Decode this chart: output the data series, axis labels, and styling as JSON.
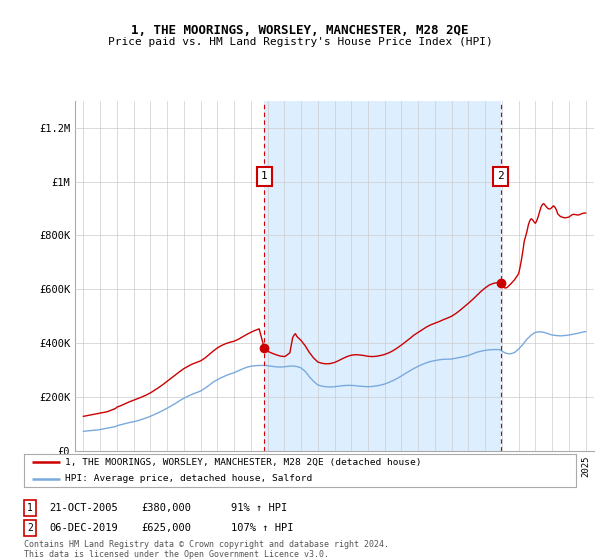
{
  "title": "1, THE MOORINGS, WORSLEY, MANCHESTER, M28 2QE",
  "subtitle": "Price paid vs. HM Land Registry's House Price Index (HPI)",
  "ylabel_ticks": [
    0,
    200000,
    400000,
    600000,
    800000,
    1000000,
    1200000
  ],
  "ylabel_labels": [
    "£0",
    "£200K",
    "£400K",
    "£600K",
    "£800K",
    "£1M",
    "£1.2M"
  ],
  "ylim": [
    0,
    1300000
  ],
  "xlim_years": [
    1994.5,
    2025.5
  ],
  "x_tick_years": [
    1995,
    1996,
    1997,
    1998,
    1999,
    2000,
    2001,
    2002,
    2003,
    2004,
    2005,
    2006,
    2007,
    2008,
    2009,
    2010,
    2011,
    2012,
    2013,
    2014,
    2015,
    2016,
    2017,
    2018,
    2019,
    2020,
    2021,
    2022,
    2023,
    2024,
    2025
  ],
  "sale1_year": 2005.81,
  "sale1_price": 380000,
  "sale1_label": "1",
  "sale1_date": "21-OCT-2005",
  "sale1_amount": "£380,000",
  "sale1_hpi": "91% ↑ HPI",
  "sale2_year": 2019.92,
  "sale2_price": 625000,
  "sale2_label": "2",
  "sale2_date": "06-DEC-2019",
  "sale2_amount": "£625,000",
  "sale2_hpi": "107% ↑ HPI",
  "line1_color": "#cc0000",
  "line2_color": "#7aaadd",
  "dashed_color": "#cc0000",
  "grid_color": "#cccccc",
  "shade_color": "#ddeeff",
  "background_color": "#ffffff",
  "legend_line1": "1, THE MOORINGS, WORSLEY, MANCHESTER, M28 2QE (detached house)",
  "legend_line2": "HPI: Average price, detached house, Salford",
  "footer": "Contains HM Land Registry data © Crown copyright and database right 2024.\nThis data is licensed under the Open Government Licence v3.0.",
  "hpi_x": [
    1995.0,
    1995.083,
    1995.167,
    1995.25,
    1995.333,
    1995.417,
    1995.5,
    1995.583,
    1995.667,
    1995.75,
    1995.833,
    1995.917,
    1996.0,
    1996.083,
    1996.167,
    1996.25,
    1996.333,
    1996.417,
    1996.5,
    1996.583,
    1996.667,
    1996.75,
    1996.833,
    1996.917,
    1997.0,
    1997.25,
    1997.5,
    1997.75,
    1998.0,
    1998.25,
    1998.5,
    1998.75,
    1999.0,
    1999.25,
    1999.5,
    1999.75,
    2000.0,
    2000.25,
    2000.5,
    2000.75,
    2001.0,
    2001.25,
    2001.5,
    2001.75,
    2002.0,
    2002.25,
    2002.5,
    2002.75,
    2003.0,
    2003.25,
    2003.5,
    2003.75,
    2004.0,
    2004.25,
    2004.5,
    2004.75,
    2005.0,
    2005.25,
    2005.5,
    2005.75,
    2005.917,
    2006.0,
    2006.25,
    2006.5,
    2006.75,
    2007.0,
    2007.25,
    2007.5,
    2007.75,
    2008.0,
    2008.25,
    2008.5,
    2008.75,
    2009.0,
    2009.25,
    2009.5,
    2009.75,
    2010.0,
    2010.25,
    2010.5,
    2010.75,
    2011.0,
    2011.25,
    2011.5,
    2011.75,
    2012.0,
    2012.25,
    2012.5,
    2012.75,
    2013.0,
    2013.25,
    2013.5,
    2013.75,
    2014.0,
    2014.25,
    2014.5,
    2014.75,
    2015.0,
    2015.25,
    2015.5,
    2015.75,
    2016.0,
    2016.25,
    2016.5,
    2016.75,
    2017.0,
    2017.25,
    2017.5,
    2017.75,
    2018.0,
    2018.25,
    2018.5,
    2018.75,
    2019.0,
    2019.25,
    2019.5,
    2019.75,
    2019.917,
    2020.0,
    2020.25,
    2020.5,
    2020.75,
    2021.0,
    2021.25,
    2021.5,
    2021.75,
    2022.0,
    2022.25,
    2022.5,
    2022.75,
    2023.0,
    2023.25,
    2023.5,
    2023.75,
    2024.0,
    2024.25,
    2024.5,
    2024.75,
    2025.0
  ],
  "hpi_y": [
    72000,
    73000,
    73500,
    74000,
    74500,
    75000,
    75500,
    76000,
    76500,
    77000,
    77500,
    78000,
    79000,
    80000,
    81000,
    82000,
    83000,
    84000,
    85000,
    86000,
    87000,
    88000,
    89000,
    90000,
    93000,
    97000,
    101000,
    105000,
    108000,
    112000,
    117000,
    122000,
    128000,
    135000,
    142000,
    150000,
    158000,
    167000,
    176000,
    186000,
    195000,
    203000,
    210000,
    216000,
    222000,
    232000,
    243000,
    255000,
    264000,
    272000,
    279000,
    285000,
    290000,
    297000,
    304000,
    310000,
    314000,
    316000,
    317000,
    317000,
    317000,
    316000,
    314000,
    312000,
    311000,
    312000,
    314000,
    315000,
    313000,
    308000,
    295000,
    275000,
    258000,
    245000,
    240000,
    238000,
    237000,
    238000,
    240000,
    242000,
    243000,
    243000,
    242000,
    240000,
    239000,
    238000,
    239000,
    241000,
    244000,
    248000,
    254000,
    261000,
    269000,
    278000,
    288000,
    297000,
    306000,
    314000,
    321000,
    327000,
    332000,
    335000,
    338000,
    340000,
    340000,
    341000,
    344000,
    347000,
    350000,
    354000,
    360000,
    366000,
    370000,
    373000,
    375000,
    376000,
    376000,
    375000,
    370000,
    362000,
    360000,
    365000,
    378000,
    395000,
    415000,
    430000,
    440000,
    442000,
    440000,
    435000,
    430000,
    428000,
    427000,
    428000,
    430000,
    433000,
    436000,
    440000,
    443000
  ],
  "prop_x": [
    1995.0,
    1995.083,
    1995.167,
    1995.25,
    1995.333,
    1995.417,
    1995.5,
    1995.583,
    1995.667,
    1995.75,
    1995.833,
    1995.917,
    1996.0,
    1996.083,
    1996.167,
    1996.25,
    1996.333,
    1996.417,
    1996.5,
    1996.583,
    1996.667,
    1996.75,
    1996.833,
    1996.917,
    1997.0,
    1997.25,
    1997.5,
    1997.75,
    1998.0,
    1998.25,
    1998.5,
    1998.75,
    1999.0,
    1999.25,
    1999.5,
    1999.75,
    2000.0,
    2000.25,
    2000.5,
    2000.75,
    2001.0,
    2001.25,
    2001.5,
    2001.75,
    2002.0,
    2002.25,
    2002.5,
    2002.75,
    2003.0,
    2003.25,
    2003.5,
    2003.75,
    2004.0,
    2004.25,
    2004.5,
    2004.75,
    2005.0,
    2005.25,
    2005.5,
    2005.81,
    2006.0,
    2006.25,
    2006.5,
    2006.75,
    2007.0,
    2007.083,
    2007.167,
    2007.25,
    2007.333,
    2007.5,
    2007.583,
    2007.667,
    2007.75,
    2008.0,
    2008.25,
    2008.5,
    2008.75,
    2009.0,
    2009.25,
    2009.5,
    2009.75,
    2010.0,
    2010.25,
    2010.5,
    2010.75,
    2011.0,
    2011.25,
    2011.5,
    2011.75,
    2012.0,
    2012.25,
    2012.5,
    2012.75,
    2013.0,
    2013.25,
    2013.5,
    2013.75,
    2014.0,
    2014.25,
    2014.5,
    2014.75,
    2015.0,
    2015.25,
    2015.5,
    2015.75,
    2016.0,
    2016.25,
    2016.5,
    2016.75,
    2017.0,
    2017.25,
    2017.5,
    2017.75,
    2018.0,
    2018.25,
    2018.5,
    2018.75,
    2019.0,
    2019.25,
    2019.5,
    2019.75,
    2019.917,
    2020.0,
    2020.083,
    2020.167,
    2020.25,
    2020.333,
    2020.5,
    2020.75,
    2021.0,
    2021.083,
    2021.167,
    2021.25,
    2021.333,
    2021.5,
    2021.583,
    2021.667,
    2021.75,
    2021.833,
    2021.917,
    2022.0,
    2022.083,
    2022.167,
    2022.25,
    2022.333,
    2022.417,
    2022.5,
    2022.583,
    2022.667,
    2022.75,
    2022.833,
    2022.917,
    2023.0,
    2023.083,
    2023.167,
    2023.25,
    2023.333,
    2023.5,
    2023.75,
    2024.0,
    2024.083,
    2024.167,
    2024.25,
    2024.333,
    2024.417,
    2024.5,
    2024.583,
    2024.667,
    2024.75,
    2024.833,
    2024.917,
    2025.0
  ],
  "prop_y": [
    128000,
    129000,
    130000,
    131000,
    132000,
    133000,
    134000,
    135000,
    136000,
    137000,
    138000,
    139000,
    140000,
    141000,
    142000,
    143000,
    144000,
    145000,
    147000,
    149000,
    151000,
    153000,
    155000,
    157000,
    162000,
    168000,
    175000,
    182000,
    188000,
    194000,
    200000,
    207000,
    215000,
    225000,
    235000,
    246000,
    258000,
    270000,
    282000,
    294000,
    305000,
    314000,
    322000,
    328000,
    334000,
    344000,
    357000,
    370000,
    382000,
    391000,
    398000,
    403000,
    407000,
    414000,
    423000,
    432000,
    440000,
    447000,
    453000,
    380000,
    370000,
    363000,
    357000,
    352000,
    350000,
    352000,
    356000,
    360000,
    364000,
    420000,
    430000,
    435000,
    425000,
    410000,
    390000,
    365000,
    345000,
    330000,
    325000,
    323000,
    324000,
    328000,
    335000,
    343000,
    350000,
    355000,
    357000,
    356000,
    354000,
    351000,
    350000,
    351000,
    354000,
    358000,
    364000,
    372000,
    382000,
    393000,
    405000,
    417000,
    430000,
    440000,
    450000,
    460000,
    468000,
    474000,
    480000,
    487000,
    493000,
    500000,
    510000,
    522000,
    535000,
    548000,
    562000,
    577000,
    592000,
    605000,
    616000,
    622000,
    625000,
    625000,
    615000,
    610000,
    605000,
    605000,
    608000,
    618000,
    635000,
    658000,
    682000,
    710000,
    742000,
    778000,
    816000,
    840000,
    855000,
    862000,
    858000,
    850000,
    845000,
    855000,
    870000,
    888000,
    905000,
    915000,
    918000,
    912000,
    905000,
    900000,
    898000,
    900000,
    905000,
    910000,
    905000,
    895000,
    880000,
    870000,
    865000,
    868000,
    872000,
    876000,
    878000,
    878000,
    877000,
    876000,
    876000,
    878000,
    880000,
    882000,
    883000,
    883000
  ]
}
